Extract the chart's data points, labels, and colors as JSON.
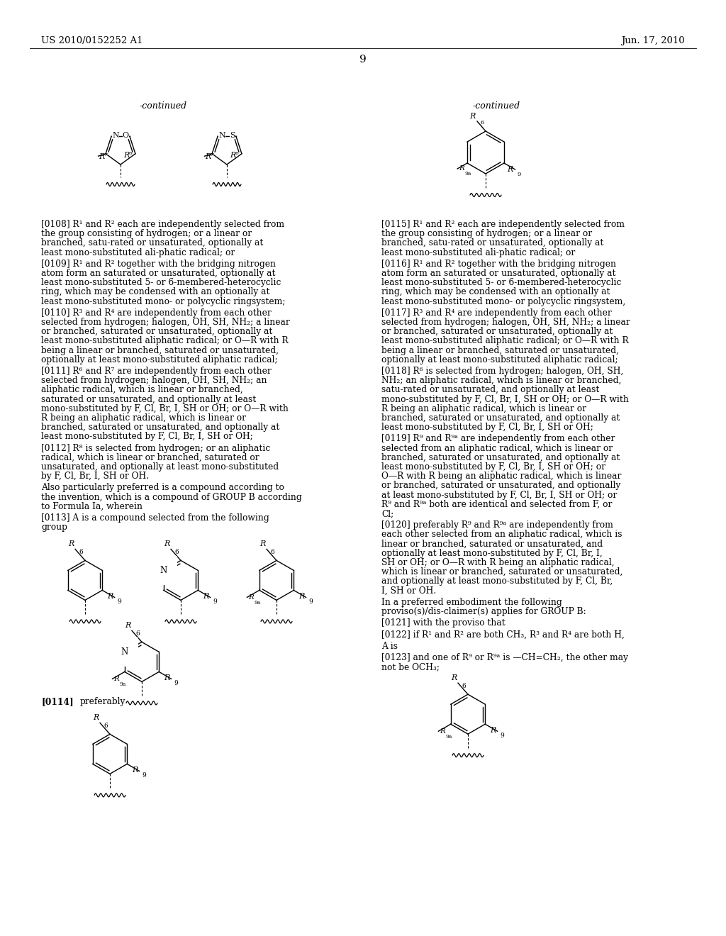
{
  "background_color": "#ffffff",
  "header_left": "US 2010/0152252 A1",
  "header_right": "Jun. 17, 2010",
  "page_number": "9",
  "continued_left": "-continued",
  "continued_right": "-continued",
  "left_paragraphs": [
    {
      "tag": "[0108]",
      "bold_tag": true,
      "text": "R¹ and R² each are independently selected from the group consisting of hydrogen; or a linear or branched, satu-rated or unsaturated, optionally at least mono-substituted ali-phatic radical; or"
    },
    {
      "tag": "[0109]",
      "bold_tag": true,
      "text": "R¹ and R² together with the bridging nitrogen atom form an saturated or unsaturated, optionally at least mono-substituted 5- or 6-membered-heterocyclic ring, which may be condensed with an optionally at least mono-substituted mono- or polycyclic ringsystem;"
    },
    {
      "tag": "[0110]",
      "bold_tag": true,
      "text": "R³ and R⁴ are independently from each other selected from hydrogen; halogen, OH, SH, NH₂; a linear or branched, saturated or unsaturated, optionally at least mono-substituted aliphatic radical; or O—R with R being a linear or branched, saturated or unsaturated, optionally at least mono-substituted aliphatic radical;"
    },
    {
      "tag": "[0111]",
      "bold_tag": true,
      "text": "R⁶ and R⁷ are independently from each other selected from hydrogen; halogen, OH, SH, NH₂; an aliphatic radical, which is linear or branched, saturated or unsaturated, and optionally at least mono-substituted by F, Cl, Br, I, SH or OH; or O—R with R being an aliphatic radical, which is linear or branched, saturated or unsaturated, and optionally at least mono-substituted by F, Cl, Br, I, SH or OH;"
    },
    {
      "tag": "[0112]",
      "bold_tag": true,
      "text": "R⁸ is selected from hydrogen; or an aliphatic radical, which is linear or branched, saturated or unsaturated, and optionally at least mono-substituted by F, Cl, Br, I, SH or OH."
    },
    {
      "tag": "",
      "bold_tag": false,
      "text": "Also particularly preferred is a compound according to the invention, which is a compound of GROUP B according to Formula Ia, wherein"
    },
    {
      "tag": "[0113]",
      "bold_tag": true,
      "text": "A is a compound selected from the following group"
    }
  ],
  "right_paragraphs": [
    {
      "tag": "[0115]",
      "bold_tag": true,
      "text": "R¹ and R² each are independently selected from the group consisting of hydrogen; or a linear or branched, satu-rated or unsaturated, optionally at least mono-substituted ali-phatic radical; or"
    },
    {
      "tag": "[0116]",
      "bold_tag": true,
      "text": "R¹ and R² together with the bridging nitrogen atom form an saturated or unsaturated, optionally at least mono-substituted 5- or 6-membered-heterocyclic ring, which may be condensed with an optionally at least mono-substituted mono- or polycyclic ringsystem,"
    },
    {
      "tag": "[0117]",
      "bold_tag": true,
      "text": "R³ and R⁴ are independently from each other selected from hydrogen; halogen, OH, SH, NH₂; a linear or branched, saturated or unsaturated, optionally at least mono-substituted aliphatic radical; or O—R with R being a linear or branched, saturated or unsaturated, optionally at least mono-substituted aliphatic radical;"
    },
    {
      "tag": "[0118]",
      "bold_tag": true,
      "text": "R⁶ is selected from hydrogen; halogen, OH, SH, NH₂; an aliphatic radical, which is linear or branched, satu-rated or unsaturated, and optionally at least mono-substituted by F, Cl, Br, I, SH or OH; or O—R with R being an aliphatic radical, which is linear or branched, saturated or unsaturated, and optionally at least mono-substituted by F, Cl, Br, I, SH or OH;"
    },
    {
      "tag": "[0119]",
      "bold_tag": true,
      "text": "R⁹ and R⁹ᵃ are independently from each other selected from an aliphatic radical, which is linear or branched, saturated or unsaturated, and optionally at least mono-substituted by F, Cl, Br, I, SH or OH; or O—R with R being an aliphatic radical, which is linear or branched, saturated or unsaturated, and optionally at least mono-substituted by F, Cl, Br, I, SH or OH; or R⁹ and R⁹ᵃ both are identical and selected from F, or Cl;"
    },
    {
      "tag": "[0120]",
      "bold_tag": true,
      "text": "preferably R⁹ and R⁹ᵃ are independently from each other selected from an aliphatic radical, which is linear or branched, saturated or unsaturated, and optionally at least mono-substituted by F, Cl, Br, I, SH or OH; or O—R with R being an aliphatic radical, which is linear or branched, saturated or unsaturated, and optionally at least mono-substituted by F, Cl, Br, I, SH or OH."
    },
    {
      "tag": "",
      "bold_tag": false,
      "text": "In a preferred embodiment the following proviso(s)/dis-claimer(s) applies for GROUP B:"
    },
    {
      "tag": "[0121]",
      "bold_tag": true,
      "text": "with the proviso that"
    },
    {
      "tag": "    [0122]",
      "bold_tag": true,
      "text": "if R¹ and R² are both CH₃, R³ and R⁴ are both H,"
    },
    {
      "tag": "    A is",
      "bold_tag": false,
      "text": ""
    }
  ],
  "footer_right": {
    "tag": "[0123]",
    "bold_tag": true,
    "text": "and one of R⁹ or R⁹ᵃ is —CH=CH₂, the other may not be OCH₃;"
  },
  "label_0114": "[0114]",
  "label_0114_text": "preferably"
}
